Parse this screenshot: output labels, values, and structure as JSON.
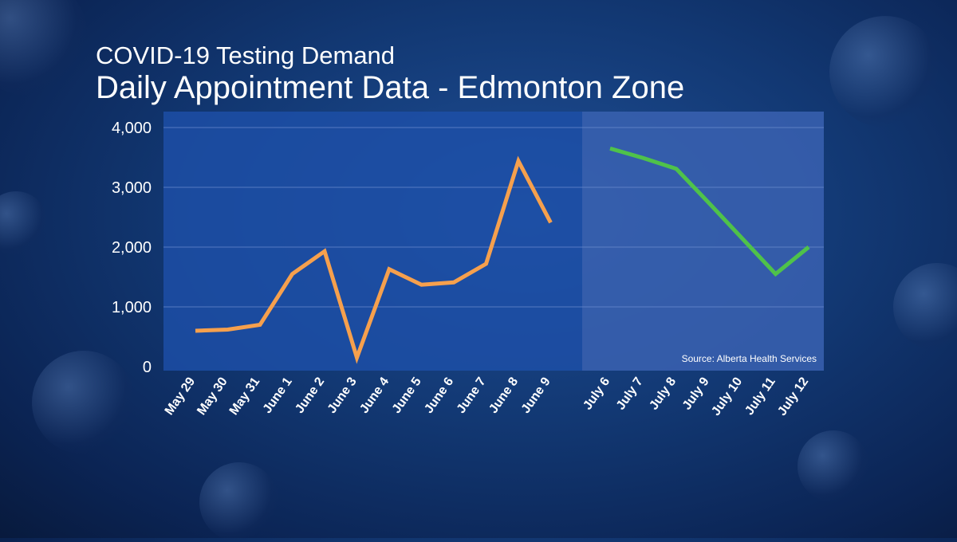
{
  "title": {
    "subtitle": "COVID-19 Testing Demand",
    "main": "Daily Appointment Data - Edmonton Zone"
  },
  "source": "Source: Alberta Health Services",
  "colors": {
    "series_1": "#f6a04d",
    "series_2": "#4fc24a",
    "plot_left": "#1d4fa8",
    "plot_right": "#3459a6",
    "grid": "#6f8fd0"
  },
  "chart_data": {
    "type": "line",
    "y_ticks": [
      "4,000",
      "3,000",
      "2,000",
      "1,000",
      "0"
    ],
    "ylim": [
      0,
      4000
    ],
    "grid": true,
    "series": [
      {
        "categories": [
          "May 29",
          "May 30",
          "May 31",
          "June 1",
          "June 2",
          "June 3",
          "June 4",
          "June 5",
          "June 6",
          "June 7",
          "June 8",
          "June 9"
        ],
        "values": [
          600,
          620,
          700,
          1550,
          1930,
          150,
          1630,
          1370,
          1410,
          1720,
          3440,
          2410
        ]
      },
      {
        "categories": [
          "July 6",
          "July 7",
          "July 8",
          "July 9",
          "July 10",
          "July 11",
          "July 12"
        ],
        "values": [
          3650,
          3490,
          3310,
          2730,
          2140,
          1550,
          2000
        ]
      }
    ]
  }
}
